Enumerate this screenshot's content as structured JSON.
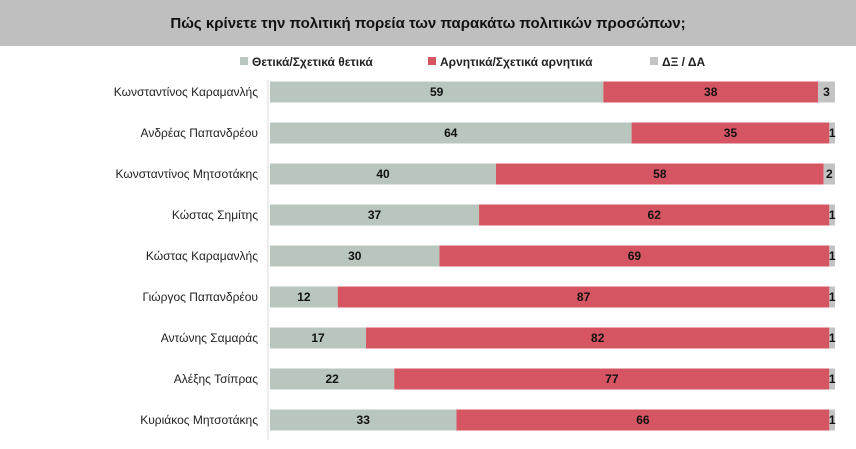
{
  "chart_data": {
    "type": "bar",
    "orientation": "horizontal-stacked",
    "title": "Πώς κρίνετε την πολιτική πορεία των παρακάτω πολιτικών προσώπων;",
    "legend_position": "top",
    "xlim": [
      0,
      100
    ],
    "categories": [
      "Κωνσταντίνος Καραμανλής",
      "Ανδρέας Παπανδρέου",
      "Κωνσταντίνος Μητσοτάκης",
      "Κώστας Σημίτης",
      "Κώστας Καραμανλής",
      "Γιώργος Παπανδρέου",
      "Αντώνης Σαμαράς",
      "Αλέξης Τσίπρας",
      "Κυριάκος Μητσοτάκης"
    ],
    "series": [
      {
        "name": "Θετικά/Σχετικά θετικά",
        "color": "#b8c6be",
        "values": [
          59,
          64,
          40,
          37,
          30,
          12,
          17,
          22,
          33
        ]
      },
      {
        "name": "Αρνητικά/Σχετικά αρνητικά",
        "color": "#d65563",
        "values": [
          38,
          35,
          58,
          62,
          69,
          87,
          82,
          77,
          66
        ]
      },
      {
        "name": "ΔΞ / ΔΑ",
        "color": "#c3c3c3",
        "values": [
          3,
          1,
          2,
          1,
          1,
          1,
          1,
          1,
          1
        ]
      }
    ]
  }
}
